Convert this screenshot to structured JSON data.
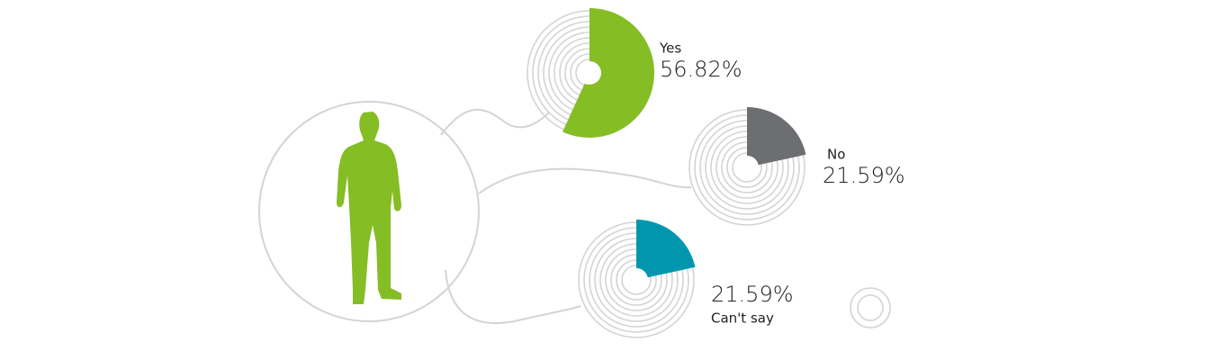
{
  "chart_data": {
    "type": "donut",
    "categories": [
      "Yes",
      "No",
      "Can't say"
    ],
    "values": [
      56.82,
      21.59,
      21.59
    ],
    "value_labels": [
      "56.82%",
      "21.59%",
      "21.59%"
    ],
    "colors": [
      "#84bd24",
      "#6d6e71",
      "#0097ae"
    ]
  }
}
